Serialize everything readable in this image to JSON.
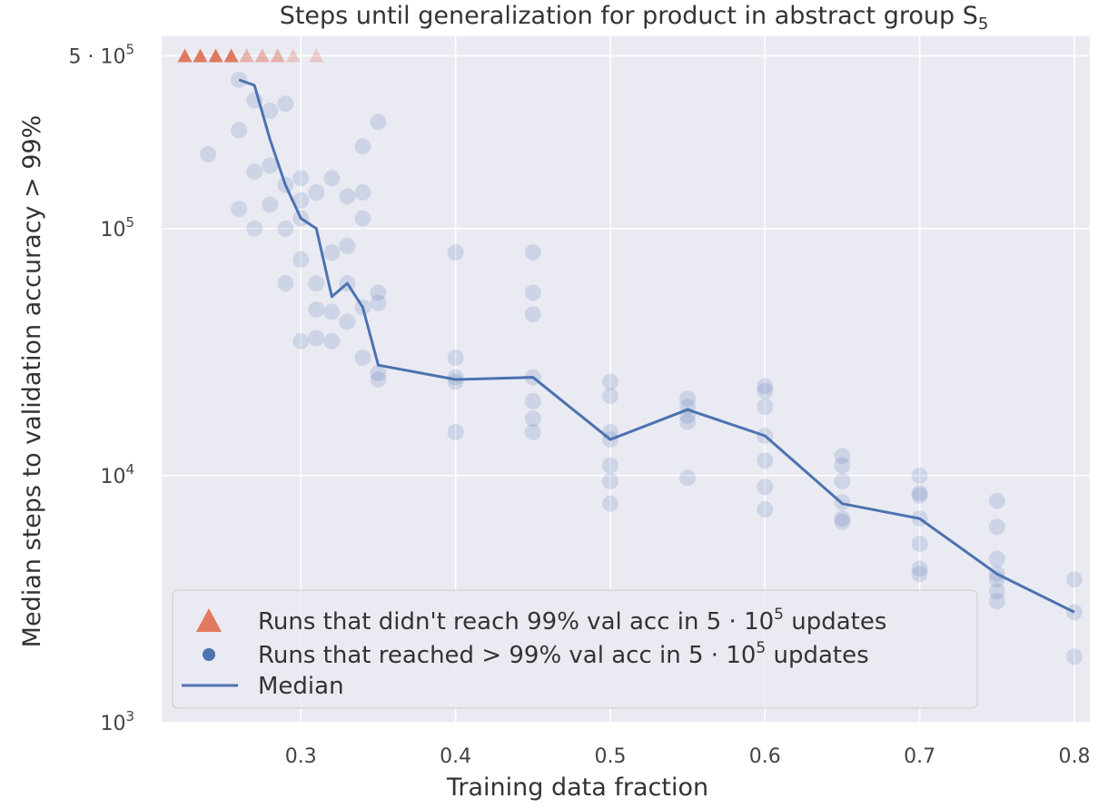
{
  "chart_data": {
    "type": "scatter",
    "title": "Steps until generalization for product in abstract group S",
    "title_subscript": "5",
    "xlabel": "Training data fraction",
    "ylabel": "Median steps to validation accuracy > 99%",
    "xlim": [
      0.21,
      0.81
    ],
    "ylim": [
      1000,
      600000
    ],
    "yscale": "log",
    "grid": true,
    "legend_position": "bottom-left",
    "x_ticks": [
      0.3,
      0.4,
      0.5,
      0.6,
      0.7,
      0.8
    ],
    "x_tick_labels": [
      "0.3",
      "0.4",
      "0.5",
      "0.6",
      "0.7",
      "0.8"
    ],
    "y_ticks": [
      {
        "value": 1000,
        "base": "10",
        "exp": "3"
      },
      {
        "value": 10000,
        "base": "10",
        "exp": "4"
      },
      {
        "value": 100000,
        "base": "10",
        "exp": "5"
      },
      {
        "value": 500000,
        "base": "5 · 10",
        "exp": "5"
      }
    ],
    "colors": {
      "failed": "#e07a5f",
      "reached": "#4c72b0",
      "median": "#4c72b0",
      "background": "#eaeaf2",
      "grid": "#ffffff"
    },
    "series": [
      {
        "name": "Runs that didn't reach 99% val acc in 5 · 10^5 updates",
        "marker": "triangle",
        "y": 500000,
        "x": [
          0.225,
          0.235,
          0.245,
          0.255,
          0.265,
          0.275,
          0.285,
          0.295,
          0.31
        ],
        "opacity": [
          1,
          1,
          1,
          1,
          0.5,
          0.5,
          0.5,
          0.3,
          0.3
        ]
      },
      {
        "name": "Runs that reached > 99% val acc in 5 · 10^5 updates",
        "marker": "circle",
        "points": [
          [
            0.24,
            200000
          ],
          [
            0.26,
            250000
          ],
          [
            0.26,
            120000
          ],
          [
            0.26,
            400000
          ],
          [
            0.27,
            170000
          ],
          [
            0.27,
            100000
          ],
          [
            0.27,
            330000
          ],
          [
            0.28,
            300000
          ],
          [
            0.28,
            125000
          ],
          [
            0.28,
            180000
          ],
          [
            0.29,
            320000
          ],
          [
            0.29,
            150000
          ],
          [
            0.29,
            60000
          ],
          [
            0.29,
            100000
          ],
          [
            0.3,
            160000
          ],
          [
            0.3,
            130000
          ],
          [
            0.3,
            110000
          ],
          [
            0.3,
            75000
          ],
          [
            0.3,
            35000
          ],
          [
            0.31,
            140000
          ],
          [
            0.31,
            60000
          ],
          [
            0.31,
            47000
          ],
          [
            0.31,
            36000
          ],
          [
            0.32,
            160000
          ],
          [
            0.32,
            80000
          ],
          [
            0.32,
            46000
          ],
          [
            0.32,
            35000
          ],
          [
            0.33,
            135000
          ],
          [
            0.33,
            85000
          ],
          [
            0.33,
            60000
          ],
          [
            0.33,
            42000
          ],
          [
            0.34,
            215000
          ],
          [
            0.34,
            140000
          ],
          [
            0.34,
            110000
          ],
          [
            0.34,
            48000
          ],
          [
            0.34,
            30000
          ],
          [
            0.35,
            270000
          ],
          [
            0.35,
            55000
          ],
          [
            0.35,
            50000
          ],
          [
            0.35,
            26000
          ],
          [
            0.35,
            24500
          ],
          [
            0.4,
            80000
          ],
          [
            0.4,
            30000
          ],
          [
            0.4,
            25000
          ],
          [
            0.4,
            24000
          ],
          [
            0.4,
            15000
          ],
          [
            0.45,
            80000
          ],
          [
            0.45,
            55000
          ],
          [
            0.45,
            45000
          ],
          [
            0.45,
            25000
          ],
          [
            0.45,
            20000
          ],
          [
            0.45,
            17000
          ],
          [
            0.45,
            15000
          ],
          [
            0.5,
            24000
          ],
          [
            0.5,
            21000
          ],
          [
            0.5,
            15000
          ],
          [
            0.5,
            14000
          ],
          [
            0.5,
            11000
          ],
          [
            0.5,
            9500
          ],
          [
            0.5,
            7700
          ],
          [
            0.55,
            20500
          ],
          [
            0.55,
            19000
          ],
          [
            0.55,
            17500
          ],
          [
            0.55,
            16500
          ],
          [
            0.55,
            9800
          ],
          [
            0.6,
            23000
          ],
          [
            0.6,
            22000
          ],
          [
            0.6,
            19000
          ],
          [
            0.6,
            14500
          ],
          [
            0.6,
            11500
          ],
          [
            0.6,
            9000
          ],
          [
            0.6,
            7300
          ],
          [
            0.65,
            12000
          ],
          [
            0.65,
            11000
          ],
          [
            0.65,
            9500
          ],
          [
            0.65,
            7800
          ],
          [
            0.65,
            6700
          ],
          [
            0.65,
            6500
          ],
          [
            0.7,
            10000
          ],
          [
            0.7,
            8500
          ],
          [
            0.7,
            8300
          ],
          [
            0.7,
            6700
          ],
          [
            0.7,
            5300
          ],
          [
            0.7,
            4200
          ],
          [
            0.7,
            4000
          ],
          [
            0.75,
            7900
          ],
          [
            0.75,
            6200
          ],
          [
            0.75,
            4600
          ],
          [
            0.75,
            4000
          ],
          [
            0.75,
            3800
          ],
          [
            0.75,
            3400
          ],
          [
            0.75,
            3100
          ],
          [
            0.8,
            3800
          ],
          [
            0.8,
            2800
          ],
          [
            0.8,
            1850
          ]
        ]
      },
      {
        "name": "Median",
        "marker": "line",
        "x": [
          0.26,
          0.27,
          0.28,
          0.29,
          0.3,
          0.31,
          0.32,
          0.33,
          0.34,
          0.35,
          0.4,
          0.45,
          0.5,
          0.55,
          0.6,
          0.65,
          0.7,
          0.75,
          0.8
        ],
        "y": [
          400000,
          380000,
          230000,
          150000,
          110000,
          100000,
          53000,
          60000,
          48000,
          28000,
          24500,
          25000,
          14000,
          18500,
          14500,
          7700,
          6700,
          4000,
          2800
        ]
      }
    ],
    "legend": [
      {
        "marker": "triangle",
        "label": "Runs that didn't reach 99% val acc in 5 · 10",
        "sup": "5",
        "suffix": " updates"
      },
      {
        "marker": "circle",
        "label": "Runs that reached > 99% val acc in 5 · 10",
        "sup": "5",
        "suffix": " updates"
      },
      {
        "marker": "line",
        "label": "Median",
        "sup": "",
        "suffix": ""
      }
    ]
  }
}
